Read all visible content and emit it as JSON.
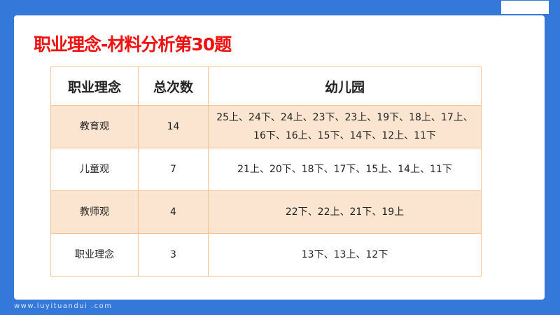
{
  "title": "职业理念-材料分析第30题",
  "table": {
    "headers": [
      "职业理念",
      "总次数",
      "幼儿园"
    ],
    "rows": [
      {
        "concept": "教育观",
        "count": "14",
        "years": "25上、24下、24上、23下、23上、19下、18上、17上、16下、16上、15下、14下、12上、11下"
      },
      {
        "concept": "儿童观",
        "count": "7",
        "years": "21上、20下、18下、17下、15上、14上、11下"
      },
      {
        "concept": "教师观",
        "count": "4",
        "years": "22下、22上、21下、19上"
      },
      {
        "concept": "职业理念",
        "count": "3",
        "years": "13下、13上、12下"
      }
    ]
  },
  "footer": "www.luyituandui .com",
  "colors": {
    "background": "#3478d9",
    "title": "#f01010",
    "border": "#f3c28f",
    "row_shade": "#fbe4d0"
  }
}
